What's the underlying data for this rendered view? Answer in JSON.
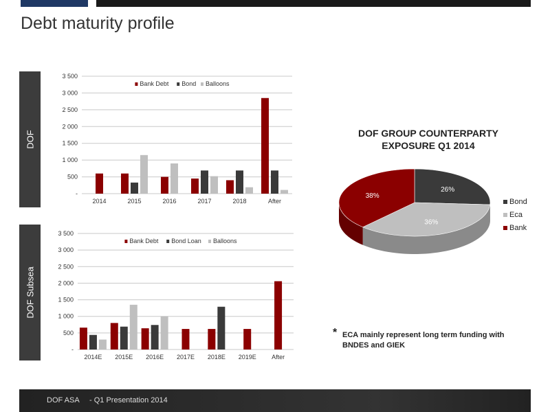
{
  "page": {
    "title": "Debt maturity profile"
  },
  "side_tabs": {
    "dof": "DOF",
    "subsea": "DOF Subsea"
  },
  "colors": {
    "bank": "#8b0000",
    "bond": "#3a3a3a",
    "balloons": "#bfbfbf",
    "eca": "#bfbfbf",
    "top_accent": "#1f3864"
  },
  "chart_data": [
    {
      "type": "bar",
      "categories": [
        "2014",
        "2015",
        "2016",
        "2017",
        "2018",
        "After"
      ],
      "yticks": [
        "-",
        "500",
        "1 000",
        "1 500",
        "2 000",
        "2 500",
        "3 000",
        "3 500"
      ],
      "ylim": [
        0,
        3500
      ],
      "grid": true,
      "legend": "top-center",
      "series": [
        {
          "name": "Bank Debt",
          "color": "#8b0000",
          "values": [
            600,
            600,
            500,
            450,
            400,
            2850
          ]
        },
        {
          "name": "Bond",
          "color": "#3a3a3a",
          "values": [
            0,
            330,
            0,
            690,
            690,
            690
          ]
        },
        {
          "name": "Balloons",
          "color": "#bfbfbf",
          "values": [
            0,
            1150,
            900,
            520,
            190,
            110
          ]
        }
      ]
    },
    {
      "type": "bar",
      "categories": [
        "2014E",
        "2015E",
        "2016E",
        "2017E",
        "2018E",
        "2019E",
        "After"
      ],
      "yticks": [
        "-",
        "500",
        "1 000",
        "1 500",
        "2 000",
        "2 500",
        "3 000",
        "3 500"
      ],
      "ylim": [
        0,
        3500
      ],
      "grid": true,
      "legend": "top-center",
      "series": [
        {
          "name": "Bank Debt",
          "color": "#8b0000",
          "values": [
            660,
            800,
            640,
            620,
            620,
            620,
            2060
          ]
        },
        {
          "name": "Bond Loan",
          "color": "#3a3a3a",
          "values": [
            440,
            690,
            740,
            0,
            1290,
            0,
            0
          ]
        },
        {
          "name": "Balloons",
          "color": "#bfbfbf",
          "values": [
            300,
            1350,
            1000,
            0,
            0,
            0,
            0
          ]
        }
      ]
    },
    {
      "type": "pie",
      "title_line1": "DOF GROUP COUNTERPARTY",
      "title_line2": "EXPOSURE Q1 2014",
      "legend": "right",
      "slices": [
        {
          "name": "Bond",
          "value": 26,
          "label": "26%",
          "color": "#3a3a3a"
        },
        {
          "name": "Eca",
          "value": 36,
          "label": "36%",
          "color": "#bfbfbf"
        },
        {
          "name": "Bank",
          "value": 38,
          "label": "38%",
          "color": "#8b0000"
        }
      ]
    }
  ],
  "note": {
    "star": "*",
    "text": "ECA mainly represent  long term funding with BNDES and GIEK"
  },
  "footer": {
    "company": "DOF ASA",
    "subtitle": "- Q1 Presentation 2014"
  }
}
